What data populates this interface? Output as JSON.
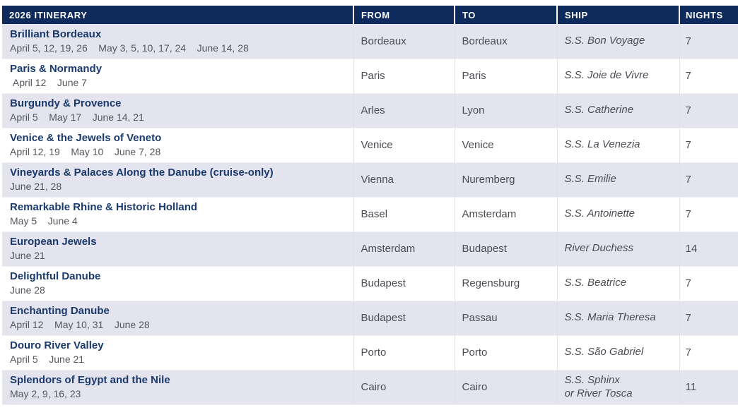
{
  "colors": {
    "header_background": "#0e2a5d",
    "header_text": "#ffffff",
    "row_stripe": "#e4e4ee",
    "row_plain": "#ffffff",
    "itinerary_title_text": "#1a3a6d",
    "body_text": "#4b4c53",
    "dates_text": "#55565e",
    "cell_border": "#dfe0e8"
  },
  "table": {
    "columns": [
      {
        "key": "itinerary",
        "label": "2026 ITINERARY"
      },
      {
        "key": "from",
        "label": "FROM"
      },
      {
        "key": "to",
        "label": "TO"
      },
      {
        "key": "ship",
        "label": "SHIP"
      },
      {
        "key": "nights",
        "label": "NIGHTS"
      }
    ],
    "rows": [
      {
        "itinerary": "Brilliant Bordeaux",
        "dates": "April 5, 12, 19, 26    May 3, 5, 10, 17, 24    June 14, 28",
        "from": "Bordeaux",
        "to": "Bordeaux",
        "ship": "S.S. Bon Voyage",
        "nights": "7"
      },
      {
        "itinerary": "Paris & Normandy",
        "dates": " April 12    June 7",
        "from": "Paris",
        "to": "Paris",
        "ship": "S.S. Joie de Vivre",
        "nights": "7"
      },
      {
        "itinerary": "Burgundy & Provence",
        "dates": "April 5    May 17    June 14, 21",
        "from": "Arles",
        "to": "Lyon",
        "ship": "S.S. Catherine",
        "nights": "7"
      },
      {
        "itinerary": "Venice & the Jewels of Veneto",
        "dates": "April 12, 19    May 10    June 7, 28",
        "from": "Venice",
        "to": "Venice",
        "ship": "S.S. La Venezia",
        "nights": "7"
      },
      {
        "itinerary": "Vineyards & Palaces Along the Danube (cruise-only)",
        "dates": "June 21, 28",
        "from": "Vienna",
        "to": "Nuremberg",
        "ship": "S.S. Emilie",
        "nights": "7"
      },
      {
        "itinerary": "Remarkable Rhine & Historic Holland",
        "dates": "May 5    June 4",
        "from": "Basel",
        "to": "Amsterdam",
        "ship": "S.S. Antoinette",
        "nights": "7"
      },
      {
        "itinerary": "European Jewels",
        "dates": "June 21",
        "from": "Amsterdam",
        "to": "Budapest",
        "ship": "River Duchess",
        "nights": "14"
      },
      {
        "itinerary": "Delightful Danube",
        "dates": "June 28",
        "from": "Budapest",
        "to": "Regensburg",
        "ship": "S.S. Beatrice",
        "nights": "7"
      },
      {
        "itinerary": "Enchanting Danube",
        "dates": "April 12    May 10, 31    June 28",
        "from": "Budapest",
        "to": "Passau",
        "ship": "S.S. Maria Theresa",
        "nights": "7"
      },
      {
        "itinerary": "Douro River Valley",
        "dates": "April 5    June 21",
        "from": "Porto",
        "to": "Porto",
        "ship": "S.S. São Gabriel",
        "nights": "7"
      },
      {
        "itinerary": "Splendors of Egypt and the Nile",
        "dates": "May 2, 9, 16, 23",
        "from": "Cairo",
        "to": "Cairo",
        "ship": "S.S. Sphinx\nor River Tosca",
        "nights": "11"
      }
    ]
  }
}
